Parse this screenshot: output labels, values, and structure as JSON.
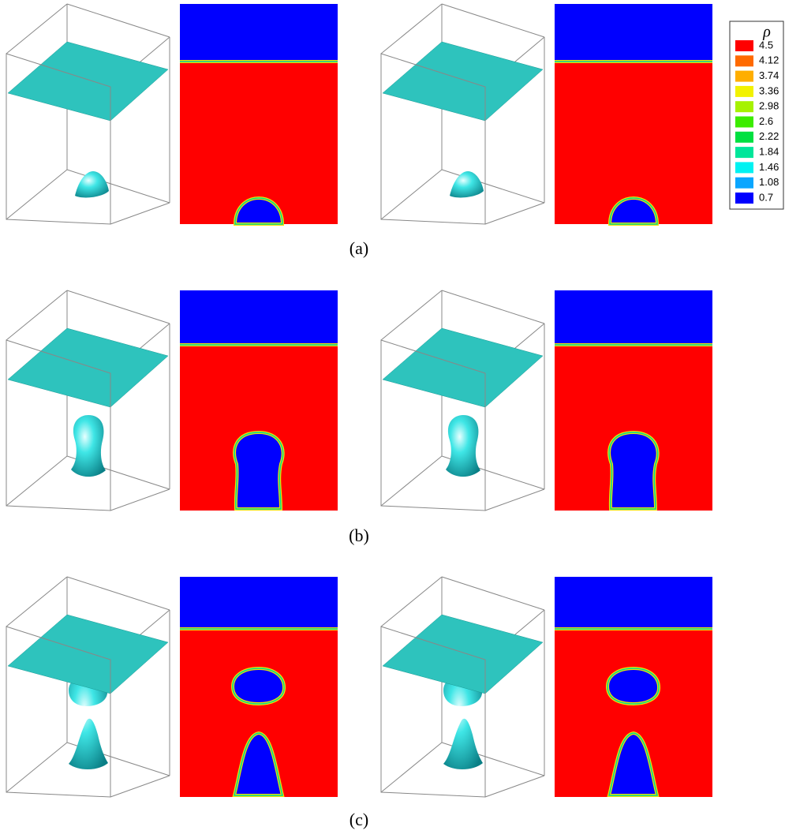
{
  "figure": {
    "panels": [
      {
        "label": "(a)"
      },
      {
        "label": "(b)"
      },
      {
        "label": "(c)"
      }
    ],
    "legend": {
      "title": "ρ",
      "levels": [
        4.5,
        4.12,
        3.74,
        3.36,
        2.98,
        2.6,
        2.22,
        1.84,
        1.46,
        1.08,
        0.7
      ],
      "colors": [
        "#ff0000",
        "#ff6a00",
        "#ffae00",
        "#f2f200",
        "#a6f200",
        "#3cec00",
        "#00e040",
        "#00e69a",
        "#00f2f2",
        "#0aa6ff",
        "#0000ff"
      ]
    }
  }
}
